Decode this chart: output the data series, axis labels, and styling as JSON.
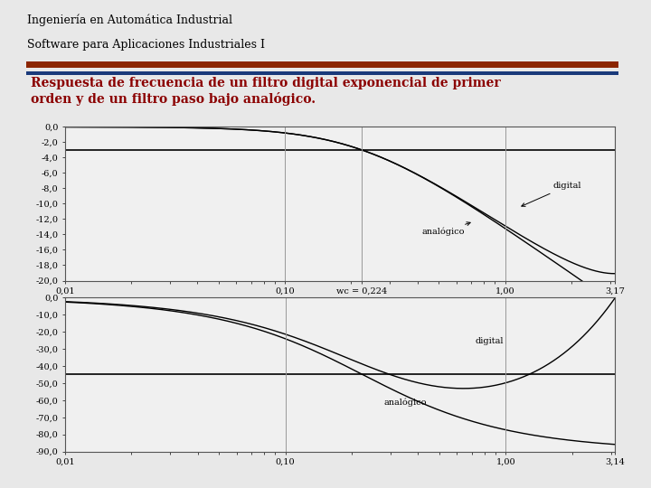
{
  "title_line1": "Ingeniería en Automática Industrial",
  "title_line2": "Software para Aplicaciones Industriales I",
  "header_bar_color1": "#8B2500",
  "header_bar_color2": "#1a3a7a",
  "subtitle_text": "Respuesta de frecuencia de un filtro digital exponencial de primer\norden y de un filtro paso bajo analógico.",
  "subtitle_color": "#8B0000",
  "bg_color": "#e8e8e8",
  "plot_bg_color": "#f0f0f0",
  "wc": 0.224,
  "omega_max1": 3.17,
  "omega_max2": 3.14159,
  "mag_yticks": [
    0,
    -2,
    -4,
    -6,
    -8,
    -10,
    -12,
    -14,
    -16,
    -18,
    -20
  ],
  "phase_yticks": [
    0,
    -10,
    -20,
    -30,
    -40,
    -50,
    -60,
    -70,
    -80,
    -90
  ],
  "hline_mag": -3.0103,
  "hline_phase": -45.0,
  "grid_color": "#999999",
  "line_color": "#000000",
  "font_size_title": 9,
  "font_size_subtitle": 10,
  "font_size_tick": 7,
  "font_size_annotation": 7,
  "xtick_labels1": [
    "0,01",
    "0,10",
    "wc = 0,224",
    "1,00",
    "3,17"
  ],
  "xtick_labels2": [
    "0,01",
    "0,10",
    "1,00",
    "3,14"
  ]
}
